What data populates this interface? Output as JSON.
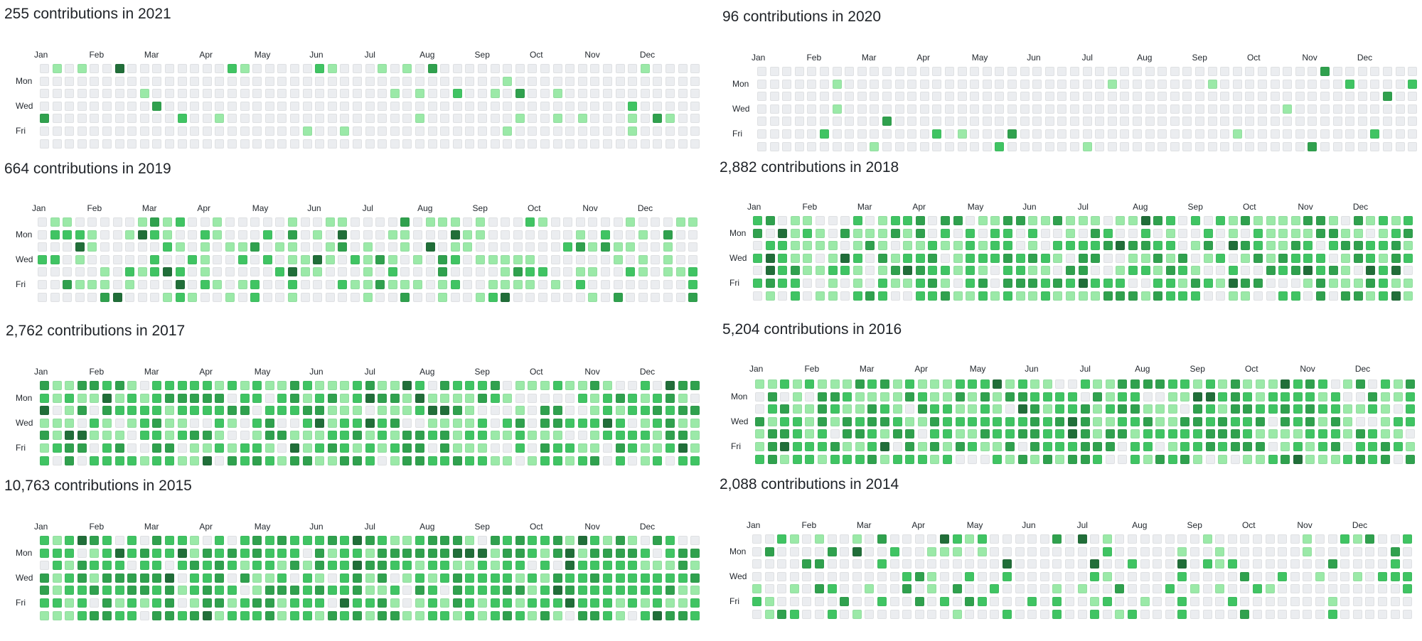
{
  "page": {
    "title": "Contribution calendars"
  },
  "day_labels": [
    "Mon",
    "Wed",
    "Fri"
  ],
  "month_labels": [
    "Jan",
    "Feb",
    "Mar",
    "Apr",
    "May",
    "Jun",
    "Jul",
    "Aug",
    "Sep",
    "Oct",
    "Nov",
    "Dec"
  ],
  "colors": {
    "level0": "#ebedf0",
    "level1": "#9be9a8",
    "level2": "#40c463",
    "level3": "#30a14e",
    "level4": "#216e39"
  },
  "calendars": [
    {
      "year": 2021,
      "title": "255 contributions in 2021",
      "density": 0.09,
      "shift": 0.0
    },
    {
      "year": 2020,
      "title": "96 contributions in 2020",
      "density": 0.05,
      "shift": 0.0
    },
    {
      "year": 2019,
      "title": "664 contributions in 2019",
      "density": 0.45,
      "shift": 0.0
    },
    {
      "year": 2018,
      "title": "2,882 contributions in 2018",
      "density": 0.78,
      "shift": 0.2
    },
    {
      "year": 2017,
      "title": "2,762 contributions in 2017",
      "density": 0.85,
      "shift": 0.2
    },
    {
      "year": 2016,
      "title": "5,204 contributions in 2016",
      "density": 0.88,
      "shift": 0.28
    },
    {
      "year": 2015,
      "title": "10,763 contributions in 2015",
      "density": 0.9,
      "shift": 0.34
    },
    {
      "year": 2014,
      "title": "2,088 contributions in 2014",
      "density": 0.28,
      "shift": 0.15
    }
  ]
}
